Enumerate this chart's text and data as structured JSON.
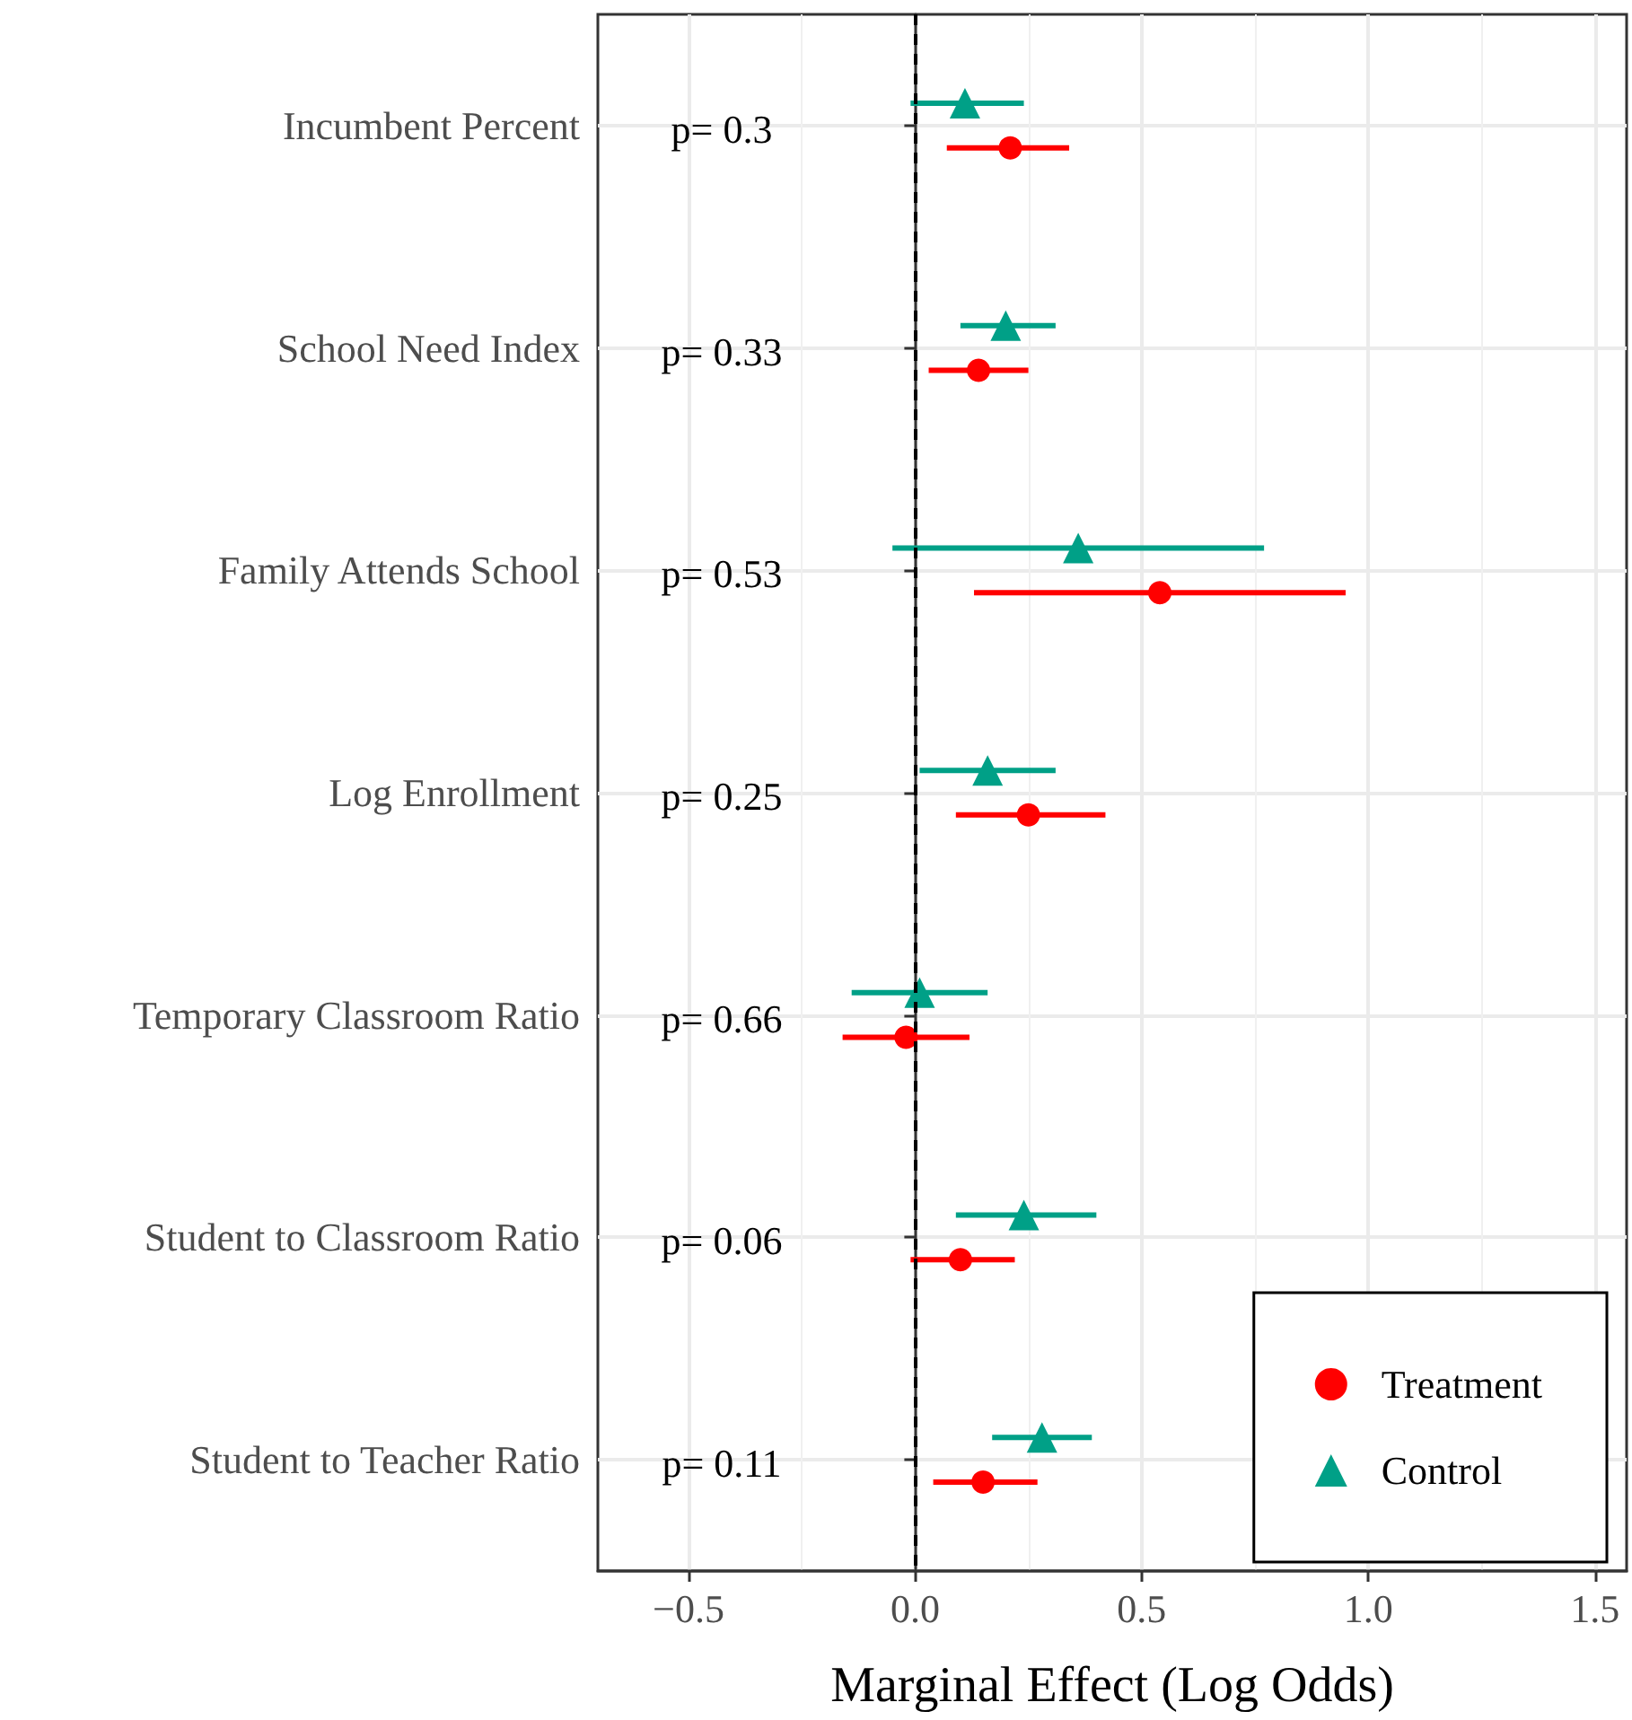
{
  "chart_data": {
    "type": "scatter",
    "orientation": "horizontal",
    "xlabel": "Marginal Effect (Log Odds)",
    "categories": [
      "Incumbent Percent",
      "School Need Index",
      "Family Attends School",
      "Log Enrollment",
      "Temporary Classroom Ratio",
      "Student to Classroom Ratio",
      "Student to Teacher Ratio"
    ],
    "series": [
      {
        "name": "Treatment",
        "color": "#ff0000",
        "marker": "circle",
        "values": [
          0.21,
          0.14,
          0.54,
          0.25,
          -0.02,
          0.1,
          0.15
        ],
        "errors": [
          [
            0.07,
            0.34
          ],
          [
            0.03,
            0.25
          ],
          [
            0.13,
            0.95
          ],
          [
            0.09,
            0.42
          ],
          [
            -0.16,
            0.12
          ],
          [
            -0.01,
            0.22
          ],
          [
            0.04,
            0.27
          ]
        ]
      },
      {
        "name": "Control",
        "color": "#00a087",
        "marker": "triangle",
        "values": [
          0.11,
          0.2,
          0.36,
          0.16,
          0.01,
          0.24,
          0.28
        ],
        "errors": [
          [
            -0.01,
            0.24
          ],
          [
            0.1,
            0.31
          ],
          [
            -0.05,
            0.77
          ],
          [
            0.01,
            0.31
          ],
          [
            -0.14,
            0.16
          ],
          [
            0.09,
            0.4
          ],
          [
            0.17,
            0.39
          ]
        ]
      }
    ],
    "xlim": [
      -0.7,
      1.57
    ],
    "xticks": [
      {
        "value": -0.5,
        "label": "−0.5"
      },
      {
        "value": 0,
        "label": "0.0"
      },
      0.5,
      {
        "value": 1,
        "label": "1.0"
      },
      1.5
    ],
    "ref_lines": [
      {
        "axis": "x",
        "value": 0,
        "color": "#000000",
        "line_style": "dashed"
      }
    ],
    "annotations": [
      "p= 0.3",
      "p= 0.33",
      "p= 0.53",
      "p= 0.25",
      "p= 0.66",
      "p= 0.06",
      "p= 0.11"
    ],
    "grid": true,
    "legend": "bottom right"
  }
}
